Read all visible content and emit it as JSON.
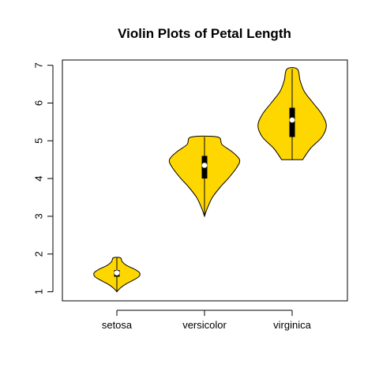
{
  "chart_data": {
    "type": "violin",
    "title": "Violin Plots of Petal Length",
    "xlabel": "",
    "ylabel": "",
    "categories": [
      "setosa",
      "versicolor",
      "virginica"
    ],
    "y_ticks": [
      1,
      2,
      3,
      4,
      5,
      6,
      7
    ],
    "ylim": [
      0.76,
      7.14
    ],
    "fill_color": "#FFD700",
    "series": [
      {
        "category": "setosa",
        "min": 1.0,
        "q1": 1.4,
        "median": 1.5,
        "q3": 1.575,
        "max": 1.9,
        "density": [
          [
            1.0,
            0.0
          ],
          [
            1.1,
            0.04
          ],
          [
            1.2,
            0.1
          ],
          [
            1.3,
            0.18
          ],
          [
            1.4,
            0.25
          ],
          [
            1.5,
            0.26
          ],
          [
            1.6,
            0.2
          ],
          [
            1.7,
            0.11
          ],
          [
            1.8,
            0.06
          ],
          [
            1.9,
            0.04
          ]
        ]
      },
      {
        "category": "versicolor",
        "min": 3.0,
        "q1": 4.0,
        "median": 4.35,
        "q3": 4.6,
        "max": 5.1,
        "density": [
          [
            3.0,
            0.0
          ],
          [
            3.2,
            0.03
          ],
          [
            3.5,
            0.09
          ],
          [
            3.8,
            0.19
          ],
          [
            4.0,
            0.27
          ],
          [
            4.3,
            0.37
          ],
          [
            4.5,
            0.4
          ],
          [
            4.7,
            0.32
          ],
          [
            4.9,
            0.2
          ],
          [
            5.1,
            0.15
          ]
        ]
      },
      {
        "category": "virginica",
        "min": 4.5,
        "q1": 5.1,
        "median": 5.55,
        "q3": 5.875,
        "max": 6.9,
        "density": [
          [
            4.5,
            0.12
          ],
          [
            4.8,
            0.21
          ],
          [
            5.1,
            0.34
          ],
          [
            5.4,
            0.39
          ],
          [
            5.7,
            0.34
          ],
          [
            6.0,
            0.24
          ],
          [
            6.3,
            0.14
          ],
          [
            6.6,
            0.09
          ],
          [
            6.9,
            0.06
          ]
        ]
      }
    ],
    "grid": false,
    "legend": "none"
  }
}
